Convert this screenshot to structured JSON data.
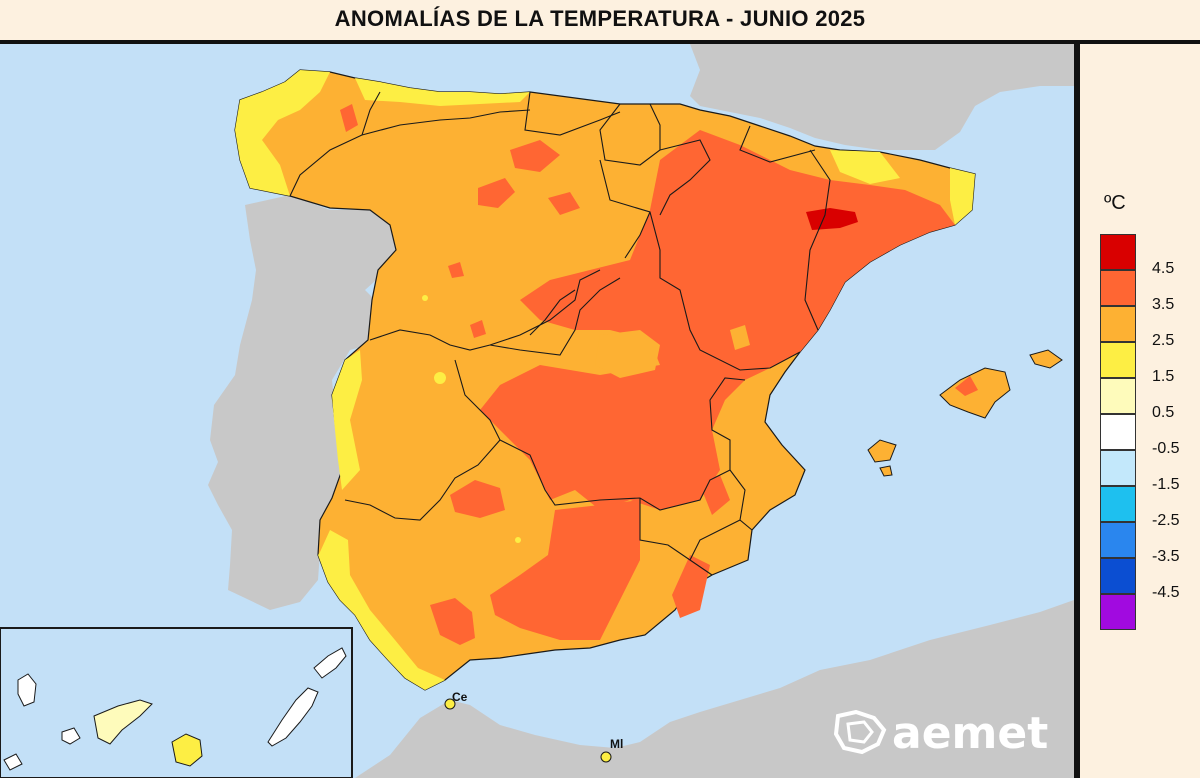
{
  "title": "ANOMALÍAS DE LA TEMPERATURA - JUNIO 2025",
  "legend": {
    "unit": "ºC",
    "classes": [
      {
        "color": "#d90000",
        "label": "4.5"
      },
      {
        "color": "#ff6633",
        "label": "3.5"
      },
      {
        "color": "#fdb133",
        "label": "2.5"
      },
      {
        "color": "#fdee44",
        "label": "1.5"
      },
      {
        "color": "#fefbbb",
        "label": "0.5"
      },
      {
        "color": "#ffffff",
        "label": "-0.5"
      },
      {
        "color": "#c3e8fb",
        "label": "-1.5"
      },
      {
        "color": "#1ec0ef",
        "label": "-2.5"
      },
      {
        "color": "#2a86ee",
        "label": "-3.5"
      },
      {
        "color": "#0b4ed2",
        "label": "-4.5"
      },
      {
        "color": "#a10ae0",
        "label": ""
      }
    ]
  },
  "cities": {
    "ceuta": "Ce",
    "melilla": "Ml"
  },
  "logo": {
    "text": "aemet"
  },
  "colors": {
    "sea": "#c3e0f7",
    "land_outside": "#c8c8c8",
    "border": "#1a1a1a"
  }
}
